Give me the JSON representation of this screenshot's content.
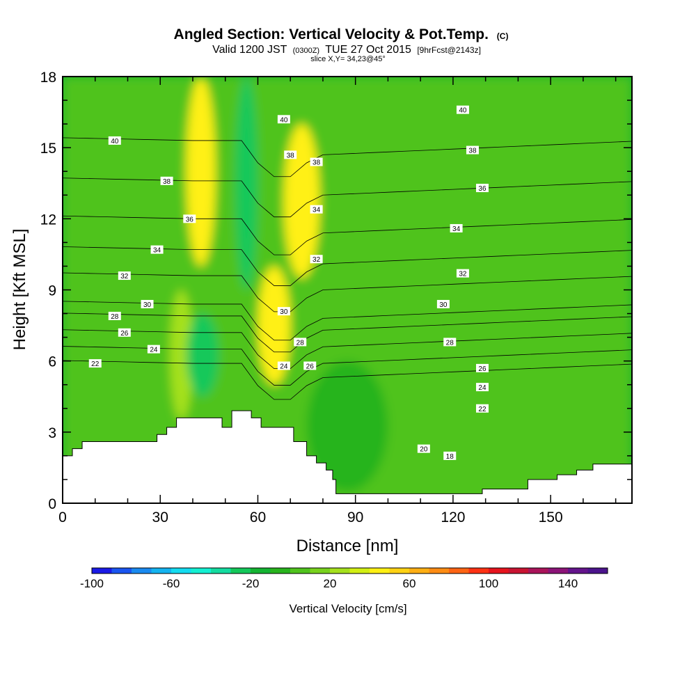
{
  "chart_data": {
    "type": "contour",
    "title": "Angled Section: Vertical Velocity & Pot.Temp.",
    "title_suffix": "(C)",
    "subtitle": {
      "prefix": "Valid 1200 JST",
      "zulu": "(0300Z)",
      "date": "TUE 27 Oct 2015",
      "forecast": "[9hrFcst@2143z]"
    },
    "slice_label": "slice X,Y= 34,23@45°",
    "xlabel": "Distance [nm]",
    "ylabel": "Height [Kft MSL]",
    "xlim": [
      0,
      175
    ],
    "ylim": [
      0,
      18
    ],
    "xticks": [
      0,
      30,
      60,
      90,
      120,
      150
    ],
    "yticks": [
      0,
      3,
      6,
      9,
      12,
      15,
      18
    ],
    "colorbar": {
      "title": "Vertical Velocity [cm/s]",
      "range": [
        -100,
        160
      ],
      "step": 10,
      "tick_labels": [
        -100,
        -60,
        -20,
        20,
        60,
        100,
        140
      ],
      "colors": [
        "#1a1ae6",
        "#1a55f0",
        "#1a8af0",
        "#14b4f0",
        "#14dcf0",
        "#14f0d2",
        "#14dca0",
        "#14c85a",
        "#14b432",
        "#28b41e",
        "#50c31e",
        "#78d21e",
        "#a5e11e",
        "#d2ef14",
        "#fff014",
        "#ffd214",
        "#ffaf14",
        "#ff8c14",
        "#ff6414",
        "#ff3214",
        "#e6141e",
        "#c81432",
        "#aa145a",
        "#8c1478",
        "#64148c",
        "#4b148c"
      ]
    },
    "background_velocity_cm_s": 0,
    "velocity_bands": [
      {
        "x": [
          38,
          47
        ],
        "y": [
          10,
          18
        ],
        "value": 40
      },
      {
        "x": [
          33,
          40
        ],
        "y": [
          3.5,
          9
        ],
        "value": 20
      },
      {
        "x": [
          53,
          60
        ],
        "y": [
          9,
          18
        ],
        "value": -30
      },
      {
        "x": [
          38,
          48
        ],
        "y": [
          4.5,
          8
        ],
        "value": -30
      },
      {
        "x": [
          68,
          79
        ],
        "y": [
          9.5,
          16
        ],
        "value": 40
      },
      {
        "x": [
          60,
          70
        ],
        "y": [
          5,
          10
        ],
        "value": 40
      },
      {
        "x": [
          75,
          100
        ],
        "y": [
          0.5,
          6
        ],
        "value": -10
      }
    ],
    "terrain_profile": [
      [
        0,
        2
      ],
      [
        3,
        2
      ],
      [
        3,
        2.3
      ],
      [
        6,
        2.3
      ],
      [
        6,
        2.6
      ],
      [
        29,
        2.6
      ],
      [
        29,
        2.9
      ],
      [
        32,
        2.9
      ],
      [
        32,
        3.2
      ],
      [
        35,
        3.2
      ],
      [
        35,
        3.6
      ],
      [
        49,
        3.6
      ],
      [
        49,
        3.2
      ],
      [
        52,
        3.2
      ],
      [
        52,
        3.9
      ],
      [
        58,
        3.9
      ],
      [
        58,
        3.6
      ],
      [
        61,
        3.6
      ],
      [
        61,
        3.2
      ],
      [
        71,
        3.2
      ],
      [
        71,
        2.6
      ],
      [
        75,
        2.6
      ],
      [
        75,
        2.0
      ],
      [
        78,
        2.0
      ],
      [
        78,
        1.7
      ],
      [
        81,
        1.7
      ],
      [
        81,
        1.4
      ],
      [
        83,
        1.4
      ],
      [
        83,
        1.0
      ],
      [
        84,
        1.0
      ],
      [
        84,
        0.4
      ],
      [
        129,
        0.4
      ],
      [
        129,
        0.6
      ],
      [
        143,
        0.6
      ],
      [
        143,
        1.0
      ],
      [
        152,
        1.0
      ],
      [
        152,
        1.2
      ],
      [
        158,
        1.2
      ],
      [
        158,
        1.4
      ],
      [
        163,
        1.4
      ],
      [
        163,
        1.65
      ],
      [
        175,
        1.65
      ]
    ],
    "isentropes": [
      {
        "theta": 22,
        "label_pos": [
          10,
          5.9
        ]
      },
      {
        "theta": 24,
        "label_pos": [
          28,
          6.5
        ]
      },
      {
        "theta": 26,
        "label_pos": [
          19,
          7.2
        ]
      },
      {
        "theta": 28,
        "label_pos": [
          16,
          7.9
        ]
      },
      {
        "theta": 30,
        "label_pos": [
          26,
          8.4
        ]
      },
      {
        "theta": 32,
        "label_pos": [
          19,
          9.6
        ]
      },
      {
        "theta": 34,
        "label_pos": [
          29,
          10.7
        ]
      },
      {
        "theta": 36,
        "label_pos": [
          39,
          12.0
        ]
      },
      {
        "theta": 38,
        "label_pos": [
          32,
          13.6
        ]
      },
      {
        "theta": 40,
        "label_pos": [
          16,
          15.3
        ]
      }
    ],
    "contour_labels": [
      {
        "text": "22",
        "x": 10,
        "y": 5.9
      },
      {
        "text": "24",
        "x": 28,
        "y": 6.5
      },
      {
        "text": "26",
        "x": 19,
        "y": 7.2
      },
      {
        "text": "28",
        "x": 16,
        "y": 7.9
      },
      {
        "text": "30",
        "x": 26,
        "y": 8.4
      },
      {
        "text": "32",
        "x": 19,
        "y": 9.6
      },
      {
        "text": "34",
        "x": 29,
        "y": 10.7
      },
      {
        "text": "36",
        "x": 39,
        "y": 12.0
      },
      {
        "text": "38",
        "x": 32,
        "y": 13.6
      },
      {
        "text": "40",
        "x": 16,
        "y": 15.3
      },
      {
        "text": "40",
        "x": 68,
        "y": 16.2
      },
      {
        "text": "38",
        "x": 70,
        "y": 14.7
      },
      {
        "text": "38",
        "x": 78,
        "y": 14.4
      },
      {
        "text": "34",
        "x": 78,
        "y": 12.4
      },
      {
        "text": "32",
        "x": 78,
        "y": 10.3
      },
      {
        "text": "30",
        "x": 68,
        "y": 8.1
      },
      {
        "text": "28",
        "x": 73,
        "y": 6.8
      },
      {
        "text": "24",
        "x": 68,
        "y": 5.8
      },
      {
        "text": "26",
        "x": 76,
        "y": 5.8
      },
      {
        "text": "40",
        "x": 123,
        "y": 16.6
      },
      {
        "text": "38",
        "x": 126,
        "y": 14.9
      },
      {
        "text": "36",
        "x": 129,
        "y": 13.3
      },
      {
        "text": "34",
        "x": 121,
        "y": 11.6
      },
      {
        "text": "32",
        "x": 123,
        "y": 9.7
      },
      {
        "text": "30",
        "x": 117,
        "y": 8.4
      },
      {
        "text": "28",
        "x": 119,
        "y": 6.8
      },
      {
        "text": "26",
        "x": 129,
        "y": 5.7
      },
      {
        "text": "24",
        "x": 129,
        "y": 4.9
      },
      {
        "text": "22",
        "x": 129,
        "y": 4.0
      },
      {
        "text": "20",
        "x": 111,
        "y": 2.3
      },
      {
        "text": "18",
        "x": 119,
        "y": 2.0
      }
    ]
  }
}
